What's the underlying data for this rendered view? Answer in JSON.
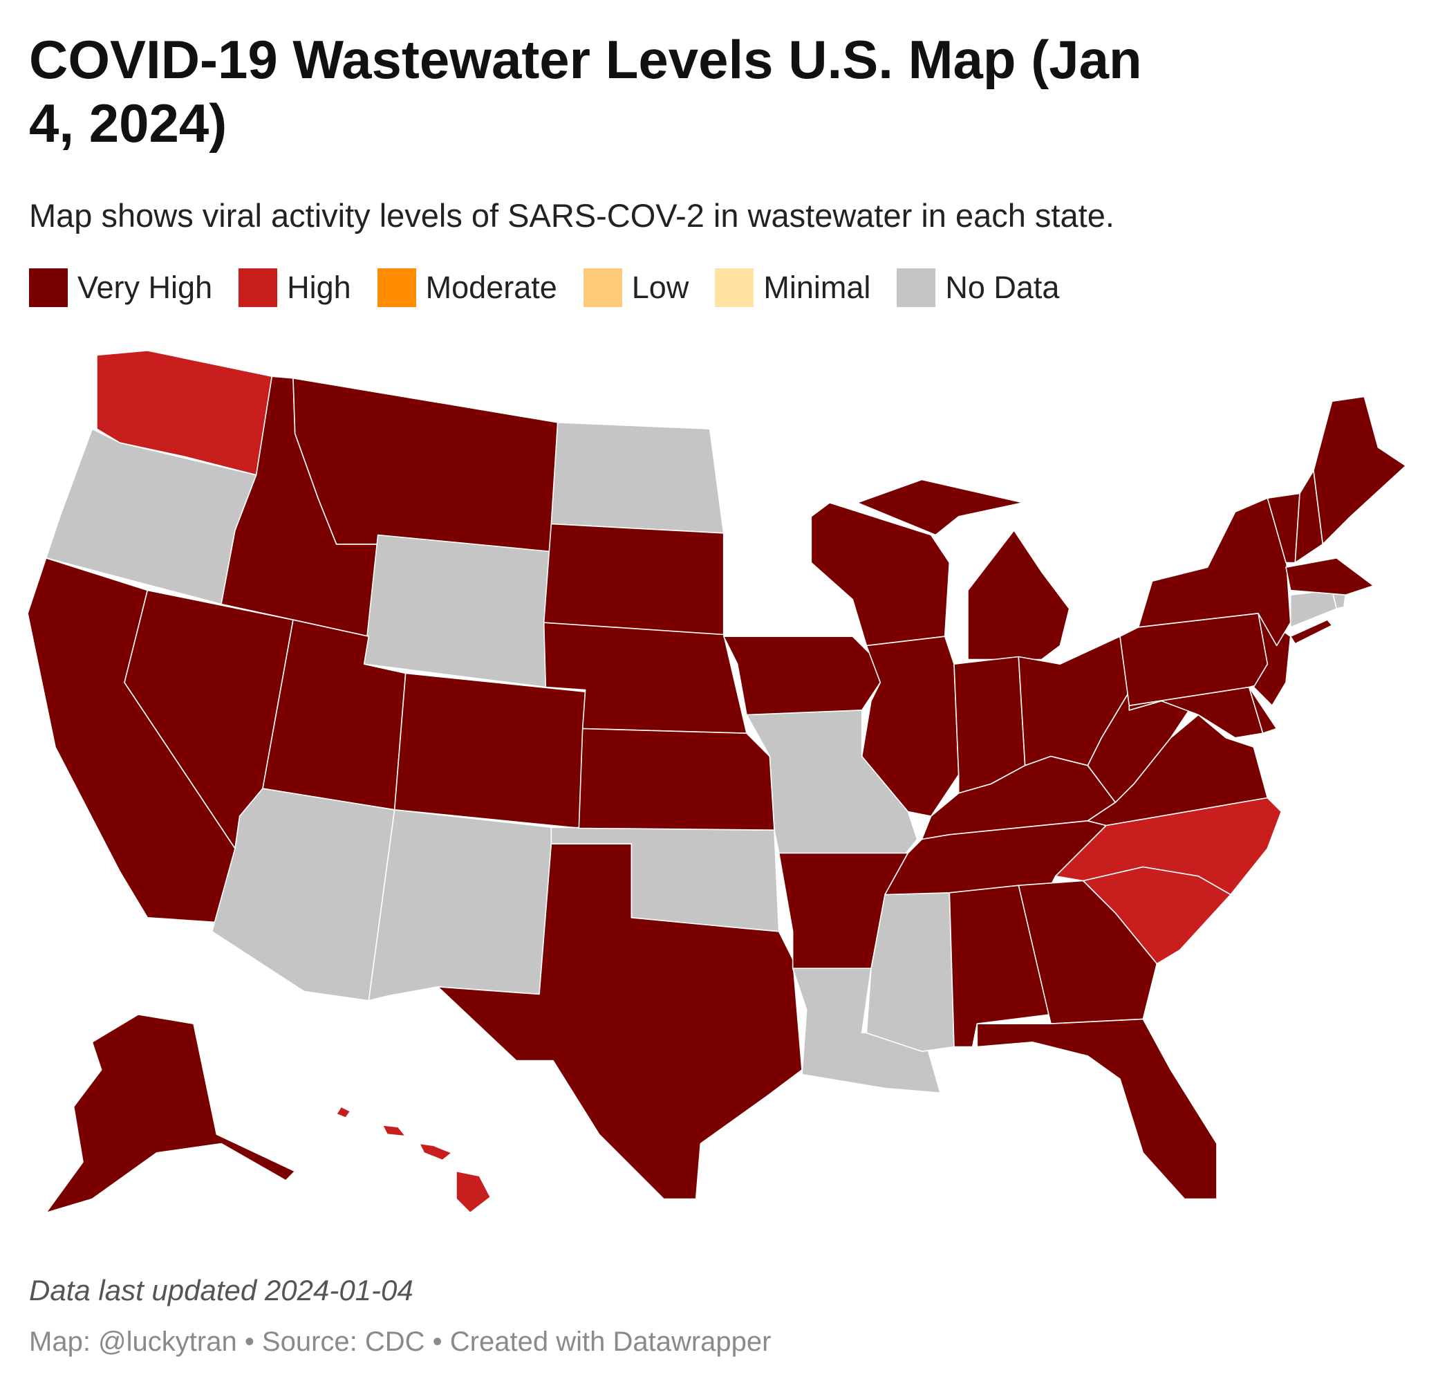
{
  "header": {
    "title": "COVID-19 Wastewater Levels U.S. Map (Jan 4, 2024)",
    "subtitle": "Map shows viral activity levels of SARS-COV-2 in wastewater in each state."
  },
  "legend": [
    {
      "label": "Very High",
      "color": "#7a0000"
    },
    {
      "label": "High",
      "color": "#c81e1e"
    },
    {
      "label": "Moderate",
      "color": "#ff8c00"
    },
    {
      "label": "Low",
      "color": "#fdca7a"
    },
    {
      "label": "Minimal",
      "color": "#fee3a2"
    },
    {
      "label": "No Data",
      "color": "#c5c5c5"
    }
  ],
  "map": {
    "regions": [
      1,
      5,
      0,
      0,
      0,
      0,
      5,
      0,
      5,
      5,
      5,
      0,
      0,
      0,
      5,
      5,
      0,
      5,
      5,
      0,
      0,
      0,
      0,
      0,
      0,
      0,
      0,
      0,
      1,
      1,
      0,
      0,
      0,
      0,
      0,
      0,
      0,
      0,
      0,
      0,
      0,
      0,
      0,
      5,
      5,
      0,
      1,
      0,
      0
    ]
  },
  "footer": {
    "note": "Data last updated 2024-01-04",
    "source": "Map: @luckytran • Source: CDC • Created with Datawrapper"
  }
}
